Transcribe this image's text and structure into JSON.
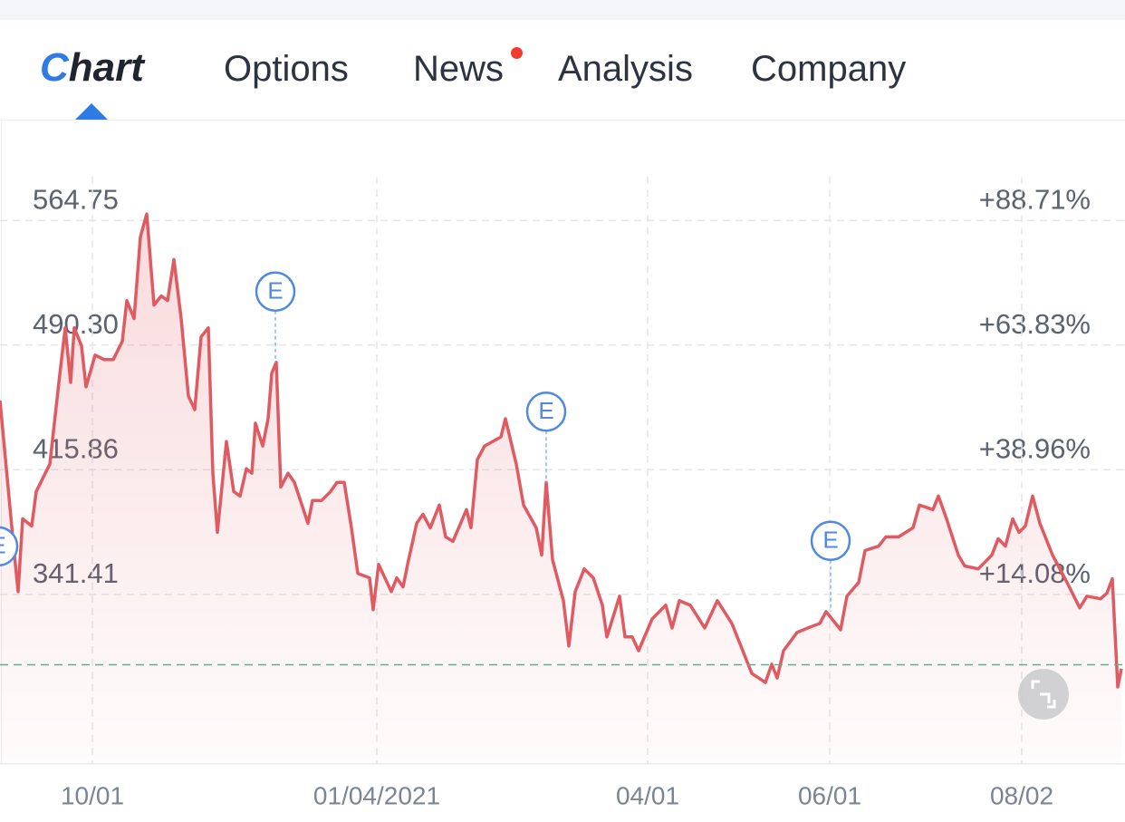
{
  "tabs": [
    {
      "label": "Chart",
      "active": true
    },
    {
      "label": "Options"
    },
    {
      "label": "News",
      "badge": true
    },
    {
      "label": "Analysis"
    },
    {
      "label": "Company"
    }
  ],
  "chart_data": {
    "type": "line",
    "area": true,
    "color": "#e05a62",
    "x": [
      0,
      3,
      4,
      5,
      7,
      8,
      10,
      11,
      13,
      14.4,
      15.6,
      16.4,
      18,
      19,
      21,
      23,
      25,
      27,
      28,
      29.6,
      31,
      32.4,
      34,
      35.6,
      37,
      38.4,
      40,
      41.6,
      43,
      44.4,
      46,
      47,
      48,
      50,
      51.6,
      53,
      54.4,
      55.6,
      56.4,
      58,
      59.2,
      60,
      61,
      62,
      63.6,
      65,
      68,
      69,
      71,
      73,
      74.4,
      76,
      77.6,
      79,
      81.6,
      82.4,
      83.6,
      86.4,
      87.6,
      89,
      90,
      92,
      93.4,
      95,
      97,
      98.4,
      100,
      103,
      104,
      105.4,
      107,
      110.6,
      111.6,
      114,
      115.6,
      118.4,
      119.6,
      120.6,
      122,
      124.4,
      125.6,
      127,
      129,
      131,
      133,
      134,
      136.8,
      138,
      139.6,
      141,
      144,
      147,
      148.4,
      150,
      152.4,
      155.6,
      158.4,
      161.6,
      164.4,
      166,
      169,
      170.4,
      171.6,
      173,
      176,
      178.4,
      181,
      182.4,
      185.6,
      187,
      189.6,
      191,
      194,
      195.6,
      198.4,
      201.6,
      203,
      206,
      207.2,
      209,
      211.6,
      213,
      216,
      219,
      220.4,
      222,
      223.6,
      225,
      226.4,
      228,
      229.6,
      232.4,
      235.6,
      238.4,
      240,
      243,
      244.4,
      245.6,
      246.8,
      247.6
    ],
    "values": [
      457.2,
      370.2,
      343.0,
      386.5,
      382.2,
      402.8,
      413.7,
      419.1,
      468.0,
      500.6,
      468.0,
      500.6,
      489.8,
      465.3,
      484.3,
      481.6,
      481.6,
      492.5,
      516.9,
      506.1,
      555.0,
      568.6,
      514.2,
      519.6,
      516.9,
      541.4,
      506.1,
      459.9,
      451.7,
      495.2,
      500.6,
      413.7,
      378.4,
      432.7,
      402.8,
      400.1,
      416.4,
      413.7,
      443.6,
      430.0,
      446.3,
      473.5,
      480.0,
      405.5,
      413.7,
      408.3,
      383.8,
      397.4,
      397.4,
      402.8,
      408.3,
      408.3,
      381.1,
      353.9,
      351.2,
      332.2,
      359.3,
      343.0,
      351.2,
      345.8,
      359.3,
      383.8,
      389.2,
      381.1,
      394.7,
      375.7,
      373.0,
      392.0,
      381.1,
      421.9,
      430.0,
      435.4,
      446.3,
      419.1,
      394.7,
      381.1,
      364.8,
      408.3,
      362.1,
      337.6,
      310.5,
      343.0,
      356.6,
      351.2,
      334.9,
      315.9,
      340.3,
      315.9,
      315.9,
      307.7,
      326.7,
      334.9,
      321.3,
      337.6,
      334.9,
      321.3,
      337.6,
      324.0,
      305.0,
      294.1,
      288.7,
      299.6,
      291.4,
      307.7,
      318.6,
      321.3,
      324.0,
      331.1,
      320.2,
      340.3,
      348.5,
      367.5,
      370.2,
      375.7,
      375.7,
      381.1,
      394.7,
      392.0,
      400.1,
      386.5,
      364.8,
      358.3,
      356.6,
      364.8,
      374.6,
      370.2,
      386.5,
      378.4,
      382.2,
      400.1,
      383.8,
      364.8,
      348.5,
      333.3,
      340.3,
      338.7,
      342.0,
      350.7,
      286.0,
      296.9
    ],
    "xlim": [
      0,
      247.6
    ],
    "xticks": [
      {
        "value": 20.4,
        "label": "10/01"
      },
      {
        "value": 83.2,
        "label": "01/04/2021"
      },
      {
        "value": 143,
        "label": "04/01"
      },
      {
        "value": 183.2,
        "label": "06/01"
      },
      {
        "value": 225.6,
        "label": "08/02"
      }
    ],
    "ylim": [
      240,
      625
    ],
    "yticks": [
      341.41,
      {
        "value": 415.86,
        "label": "415.86"
      },
      {
        "value": 490.3,
        "label": "490.30"
      },
      564.75
    ],
    "y2lim": [
      -19.8,
      108.84
    ],
    "y2ticks": [
      {
        "value": 14.08,
        "label": "+14.08%"
      },
      {
        "value": 38.96,
        "label": "+38.96%"
      },
      {
        "value": 63.83,
        "label": "+63.83%"
      },
      {
        "value": 88.71,
        "label": "+88.71%"
      }
    ],
    "reference_value": 299.27,
    "grid": true,
    "events": [
      {
        "x": -0.4,
        "value": 327.8,
        "label": "E"
      },
      {
        "x": 60.8,
        "value": 480.0,
        "label": "E"
      },
      {
        "x": 120.6,
        "value": 408.3,
        "label": "E"
      },
      {
        "x": 183.4,
        "value": 331.1,
        "label": "E"
      }
    ]
  }
}
